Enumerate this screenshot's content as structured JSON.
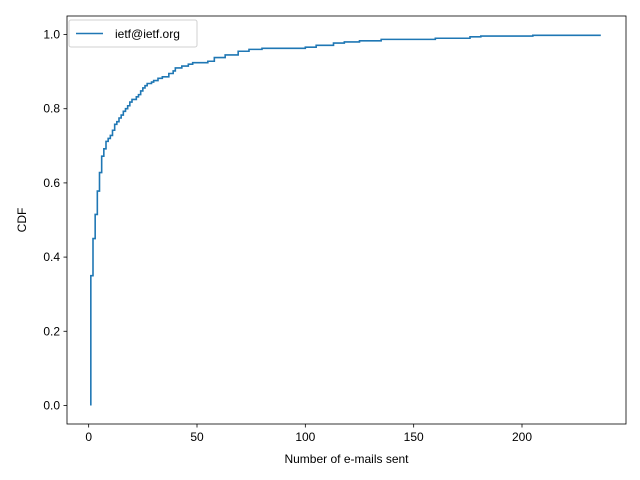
{
  "chart_data": {
    "type": "line",
    "title": "",
    "xlabel": "Number of e-mails sent",
    "ylabel": "CDF",
    "xlim": [
      -10,
      248
    ],
    "ylim": [
      -0.05,
      1.05
    ],
    "xticks": [
      0,
      50,
      100,
      150,
      200
    ],
    "yticks": [
      0.0,
      0.2,
      0.4,
      0.6,
      0.8,
      1.0
    ],
    "xtick_labels": [
      "0",
      "50",
      "100",
      "150",
      "200"
    ],
    "ytick_labels": [
      "0.0",
      "0.2",
      "0.4",
      "0.6",
      "0.8",
      "1.0"
    ],
    "grid": false,
    "legend_position": "top-left",
    "series": [
      {
        "name": "ietf@ietf.org",
        "color": "#1f77b4",
        "step": true,
        "points": [
          [
            1,
            0.0
          ],
          [
            1,
            0.35
          ],
          [
            2,
            0.35
          ],
          [
            2,
            0.45
          ],
          [
            3,
            0.45
          ],
          [
            3,
            0.515
          ],
          [
            4,
            0.515
          ],
          [
            4,
            0.578
          ],
          [
            5,
            0.578
          ],
          [
            5,
            0.628
          ],
          [
            6,
            0.628
          ],
          [
            6,
            0.672
          ],
          [
            7,
            0.672
          ],
          [
            7,
            0.692
          ],
          [
            8,
            0.692
          ],
          [
            8,
            0.712
          ],
          [
            9,
            0.712
          ],
          [
            9,
            0.72
          ],
          [
            10,
            0.72
          ],
          [
            10,
            0.728
          ],
          [
            11,
            0.728
          ],
          [
            11,
            0.742
          ],
          [
            12,
            0.742
          ],
          [
            12,
            0.758
          ],
          [
            13,
            0.758
          ],
          [
            13,
            0.765
          ],
          [
            14,
            0.765
          ],
          [
            14,
            0.775
          ],
          [
            15,
            0.775
          ],
          [
            15,
            0.783
          ],
          [
            16,
            0.783
          ],
          [
            16,
            0.793
          ],
          [
            17,
            0.793
          ],
          [
            17,
            0.8
          ],
          [
            18,
            0.8
          ],
          [
            18,
            0.808
          ],
          [
            19,
            0.808
          ],
          [
            19,
            0.818
          ],
          [
            20,
            0.818
          ],
          [
            20,
            0.825
          ],
          [
            22,
            0.825
          ],
          [
            22,
            0.832
          ],
          [
            23,
            0.832
          ],
          [
            23,
            0.838
          ],
          [
            24,
            0.838
          ],
          [
            24,
            0.848
          ],
          [
            25,
            0.848
          ],
          [
            25,
            0.856
          ],
          [
            26,
            0.856
          ],
          [
            26,
            0.862
          ],
          [
            27,
            0.862
          ],
          [
            27,
            0.868
          ],
          [
            29,
            0.868
          ],
          [
            29,
            0.872
          ],
          [
            30,
            0.872
          ],
          [
            30,
            0.876
          ],
          [
            32,
            0.876
          ],
          [
            32,
            0.882
          ],
          [
            34,
            0.882
          ],
          [
            34,
            0.886
          ],
          [
            37,
            0.886
          ],
          [
            37,
            0.895
          ],
          [
            39,
            0.895
          ],
          [
            39,
            0.902
          ],
          [
            40,
            0.902
          ],
          [
            40,
            0.91
          ],
          [
            43,
            0.91
          ],
          [
            43,
            0.915
          ],
          [
            46,
            0.915
          ],
          [
            46,
            0.92
          ],
          [
            48,
            0.92
          ],
          [
            48,
            0.924
          ],
          [
            55,
            0.924
          ],
          [
            55,
            0.928
          ],
          [
            58,
            0.928
          ],
          [
            58,
            0.938
          ],
          [
            63,
            0.938
          ],
          [
            63,
            0.945
          ],
          [
            69,
            0.945
          ],
          [
            69,
            0.955
          ],
          [
            74,
            0.955
          ],
          [
            74,
            0.96
          ],
          [
            80,
            0.96
          ],
          [
            80,
            0.963
          ],
          [
            100,
            0.963
          ],
          [
            100,
            0.966
          ],
          [
            105,
            0.966
          ],
          [
            105,
            0.971
          ],
          [
            113,
            0.971
          ],
          [
            113,
            0.977
          ],
          [
            118,
            0.977
          ],
          [
            118,
            0.98
          ],
          [
            125,
            0.98
          ],
          [
            125,
            0.983
          ],
          [
            135,
            0.983
          ],
          [
            135,
            0.987
          ],
          [
            160,
            0.987
          ],
          [
            160,
            0.99
          ],
          [
            176,
            0.99
          ],
          [
            176,
            0.994
          ],
          [
            181,
            0.994
          ],
          [
            181,
            0.996
          ],
          [
            205,
            0.996
          ],
          [
            205,
            0.998
          ],
          [
            236,
            0.998
          ],
          [
            236,
            1.0
          ]
        ]
      }
    ]
  }
}
